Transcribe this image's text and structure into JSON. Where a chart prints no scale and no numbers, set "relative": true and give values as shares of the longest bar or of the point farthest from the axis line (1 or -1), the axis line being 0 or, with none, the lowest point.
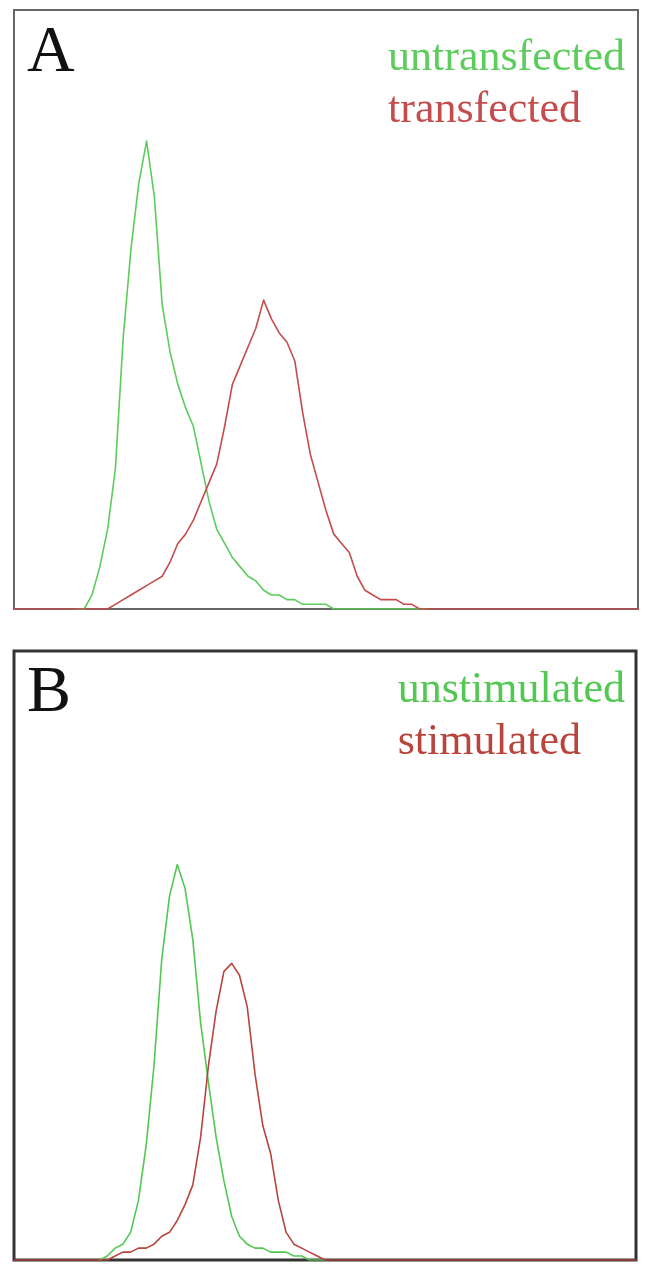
{
  "chart_data": [
    {
      "type": "line",
      "title": "A",
      "relative": true,
      "legend": "top right",
      "categories": [
        null,
        null,
        null,
        null,
        null,
        null,
        null,
        null,
        null,
        null,
        null,
        null,
        null,
        null,
        null,
        null,
        null,
        null,
        null,
        null,
        null,
        null,
        null,
        null,
        null,
        null,
        null,
        null,
        null,
        null,
        null,
        null,
        null,
        null,
        null,
        null,
        null,
        null,
        null,
        null,
        null,
        null,
        null,
        null,
        null,
        null,
        null,
        null,
        null,
        null,
        null,
        null,
        null,
        null,
        null,
        null,
        null,
        null,
        null,
        null,
        null,
        null,
        null,
        null,
        null,
        null,
        null,
        null,
        null,
        null,
        null,
        null,
        null,
        null,
        null,
        null,
        null,
        null,
        null,
        null,
        null
      ],
      "series": [
        {
          "name": "untransfected",
          "color": "#5ccc5c",
          "values": [
            null,
            null,
            null,
            null,
            null,
            null,
            null,
            null,
            0,
            0,
            0.03,
            0.09,
            0.17,
            0.3,
            0.58,
            0.77,
            0.91,
            1,
            0.88,
            0.65,
            0.55,
            0.48,
            0.43,
            0.39,
            0.31,
            0.23,
            0.17,
            0.14,
            0.11,
            0.09,
            0.07,
            0.06,
            0.04,
            0.03,
            0.03,
            0.02,
            0.02,
            0.01,
            0.01,
            0.01,
            0.01,
            0,
            0,
            0,
            0,
            0,
            0,
            0,
            0,
            0,
            0,
            0,
            0,
            0,
            null,
            null,
            null,
            null,
            null,
            null,
            null,
            null,
            null,
            null,
            null,
            null,
            null,
            null,
            null,
            null,
            null,
            null,
            null,
            null,
            null,
            null,
            null,
            null,
            null,
            null,
            null
          ]
        },
        {
          "name": "transfected",
          "color": "#c44c4c",
          "values": [
            0,
            0,
            0,
            0,
            0,
            0,
            0,
            0,
            0,
            0,
            0,
            0,
            0,
            0.01,
            0.02,
            0.03,
            0.04,
            0.05,
            0.06,
            0.07,
            0.1,
            0.14,
            0.16,
            0.19,
            0.23,
            0.27,
            0.31,
            0.39,
            0.48,
            0.52,
            0.56,
            0.6,
            0.66,
            0.62,
            0.59,
            0.57,
            0.53,
            0.42,
            0.33,
            0.27,
            0.21,
            0.16,
            0.14,
            0.12,
            0.07,
            0.04,
            0.03,
            0.02,
            0.02,
            0.02,
            0.01,
            0.01,
            0,
            0,
            0,
            0,
            0,
            0,
            0,
            0,
            0,
            0,
            0,
            0,
            0,
            0,
            0,
            0,
            0,
            0,
            0,
            0,
            0,
            0,
            0,
            0,
            0,
            0,
            0,
            0,
            0
          ]
        }
      ]
    },
    {
      "type": "line",
      "title": "B",
      "relative": true,
      "legend": "top right",
      "categories": [
        null,
        null,
        null,
        null,
        null,
        null,
        null,
        null,
        null,
        null,
        null,
        null,
        null,
        null,
        null,
        null,
        null,
        null,
        null,
        null,
        null,
        null,
        null,
        null,
        null,
        null,
        null,
        null,
        null,
        null,
        null,
        null,
        null,
        null,
        null,
        null,
        null,
        null,
        null,
        null,
        null,
        null,
        null,
        null,
        null,
        null,
        null,
        null,
        null,
        null,
        null,
        null,
        null,
        null,
        null,
        null,
        null,
        null,
        null,
        null,
        null,
        null,
        null,
        null,
        null,
        null,
        null,
        null,
        null,
        null,
        null,
        null,
        null,
        null,
        null,
        null,
        null,
        null,
        null,
        null,
        null
      ],
      "series": [
        {
          "name": "unstimulated",
          "color": "#52c852",
          "values": [
            null,
            null,
            null,
            null,
            null,
            null,
            null,
            null,
            null,
            null,
            null,
            0,
            0.01,
            0.03,
            0.04,
            0.07,
            0.15,
            0.29,
            0.49,
            0.76,
            0.92,
            1,
            0.94,
            0.81,
            0.6,
            0.45,
            0.31,
            0.2,
            0.11,
            0.06,
            0.04,
            0.03,
            0.03,
            0.02,
            0.02,
            0.02,
            0.01,
            0.01,
            0,
            0,
            0,
            null,
            null,
            null,
            null,
            null,
            null,
            null,
            null,
            null,
            null,
            null,
            null,
            null,
            null,
            null,
            null,
            null,
            null,
            null,
            null,
            null,
            null,
            null,
            null,
            null,
            null,
            null,
            null,
            null,
            null,
            null,
            null,
            null,
            null,
            null,
            null,
            null,
            null,
            null,
            null
          ]
        },
        {
          "name": "stimulated",
          "color": "#b8443c",
          "values": [
            0,
            0,
            0,
            0,
            0,
            0,
            0,
            0,
            0,
            0,
            0,
            0,
            0,
            0.01,
            0.02,
            0.02,
            0.03,
            0.03,
            0.04,
            0.06,
            0.07,
            0.1,
            0.14,
            0.19,
            0.31,
            0.49,
            0.63,
            0.73,
            0.75,
            0.72,
            0.64,
            0.47,
            0.34,
            0.27,
            0.15,
            0.07,
            0.04,
            0.03,
            0.02,
            0.01,
            0,
            0,
            0,
            0,
            0,
            0,
            0,
            0,
            0,
            0,
            0,
            0,
            0,
            0,
            0,
            0,
            0,
            0,
            0,
            0,
            0,
            0,
            0,
            0,
            0,
            0,
            0,
            0,
            0,
            0,
            0,
            0,
            0,
            0,
            0,
            0,
            0,
            0,
            0,
            0,
            0
          ]
        }
      ]
    }
  ]
}
